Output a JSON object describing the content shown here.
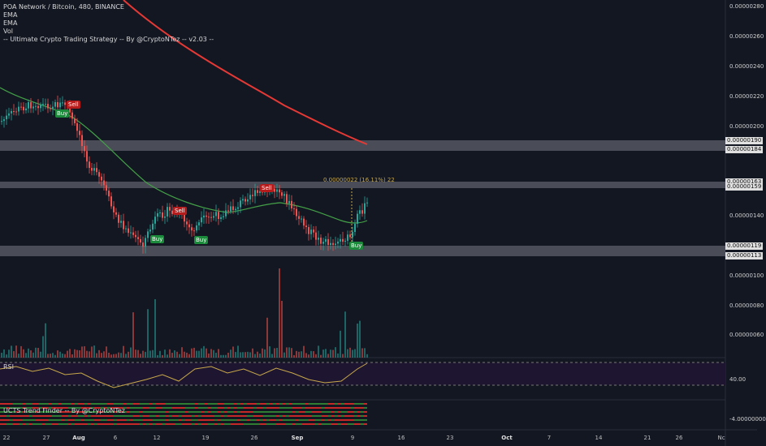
{
  "legend": {
    "title": "POA Network / Bitcoin, 480, BINANCE",
    "ema1": "EMA",
    "ema2": "EMA",
    "vol": "Vol",
    "strategy": "-- Ultimate Crypto Trading Strategy -- By @CryptoNTez -- v2.03 --"
  },
  "rsi_label": "RSI",
  "ucts_label": "UCTS Trend Finder -- By @CryptoNTez",
  "measure_text": "0.00000022 (16.11%) 22",
  "price_axis": [
    "0.00000280",
    "0.00000260",
    "0.00000240",
    "0.00000220",
    "0.00000200",
    "0.00000190",
    "0.00000184",
    "0.00000163",
    "0.00000159",
    "0.00000140",
    "0.00000119",
    "0.00000113",
    "0.00000100",
    "0.00000080",
    "0.00000060",
    "40.00",
    "-4.00000000"
  ],
  "time_axis": [
    "22",
    "27",
    "Aug",
    "6",
    "12",
    "19",
    "26",
    "Sep",
    "9",
    "16",
    "23",
    "Oct",
    "7",
    "14",
    "21",
    "26",
    "Nc"
  ],
  "signals": [
    {
      "text": "Sell",
      "type": "sell"
    },
    {
      "text": "Buy",
      "type": "buy"
    },
    {
      "text": "Buy",
      "type": "buy"
    },
    {
      "text": "Sell",
      "type": "sell"
    },
    {
      "text": "Buy",
      "type": "buy"
    },
    {
      "text": "Sell",
      "type": "sell"
    },
    {
      "text": "Buy",
      "type": "buy"
    }
  ],
  "colors": {
    "background": "#131722",
    "up": "#26a69a",
    "down": "#ef5350",
    "ema_slow": "#e53935",
    "ema_fast": "#43a047",
    "zone": "#5d6069",
    "rsi_bg": "#1e1630",
    "rsi_line": "#c8a84a"
  }
}
